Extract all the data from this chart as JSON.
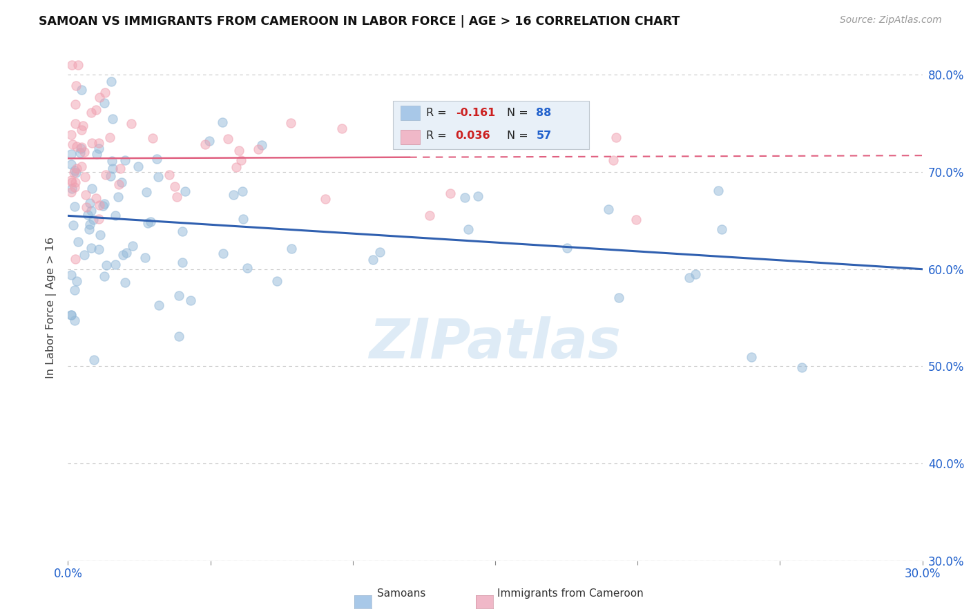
{
  "title": "SAMOAN VS IMMIGRANTS FROM CAMEROON IN LABOR FORCE | AGE > 16 CORRELATION CHART",
  "source": "Source: ZipAtlas.com",
  "ylabel": "In Labor Force | Age > 16",
  "samoans_color": "#92b8d8",
  "cameroon_color": "#f0a0b0",
  "samoans_line_color": "#3060b0",
  "cameroon_line_color": "#e06080",
  "watermark": "ZIPatlas",
  "xlim": [
    0.0,
    0.3
  ],
  "ylim": [
    0.3,
    0.82
  ],
  "y_ticks": [
    0.3,
    0.4,
    0.5,
    0.6,
    0.7,
    0.8
  ],
  "background_color": "#ffffff",
  "grid_color": "#c8c8c8",
  "R_samoans": -0.161,
  "N_samoans": 88,
  "R_cameroon": 0.036,
  "N_cameroon": 57,
  "legend_box_color": "#e8f0f8",
  "legend_border_color": "#c0c8d0",
  "samoans_patch_color": "#a8c8e8",
  "cameroon_patch_color": "#f0b8c8",
  "R_value_color": "#cc2020",
  "N_value_color": "#2060cc",
  "axis_label_color": "#2060cc"
}
